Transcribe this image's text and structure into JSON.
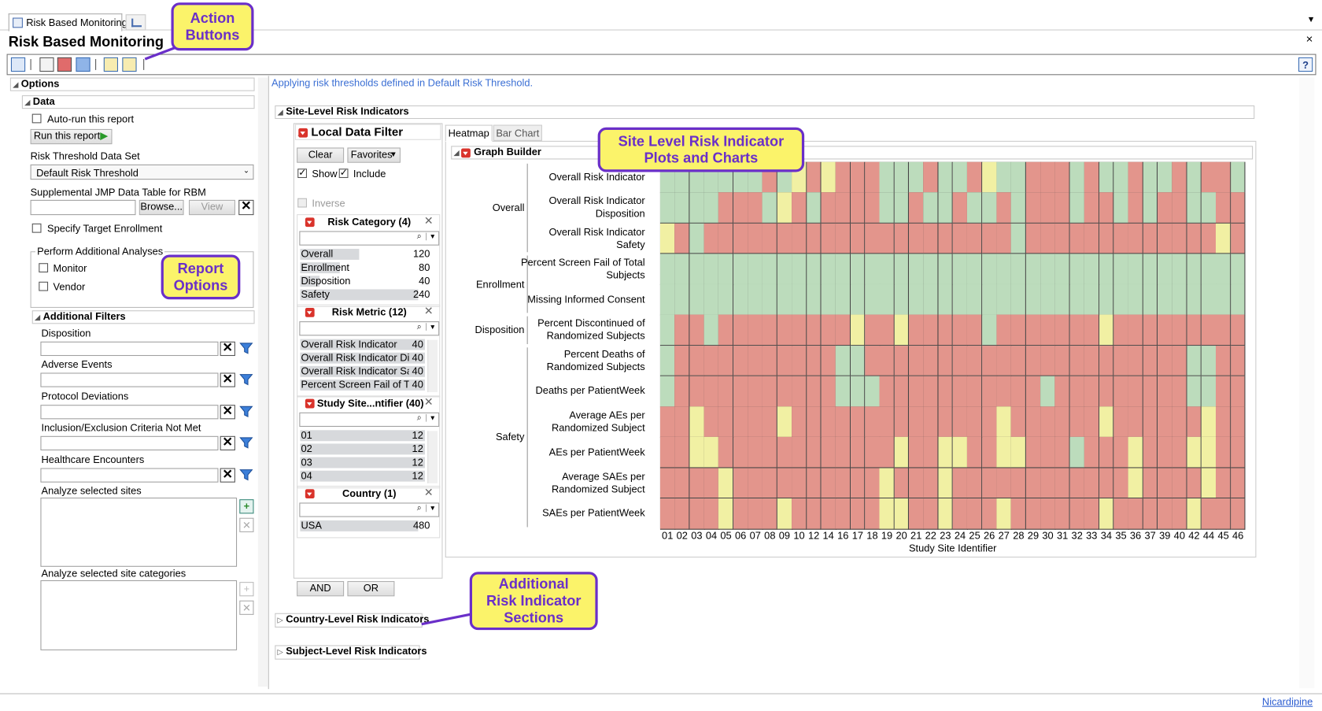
{
  "tabs": {
    "active": "Risk Based Monitoring"
  },
  "header": {
    "title": "Risk Based Monitoring"
  },
  "callouts": {
    "action_buttons": "Action Buttons",
    "report_options": "Report Options",
    "site_level": "Site Level Risk Indicator Plots and Charts",
    "additional": "Additional Risk Indicator Sections"
  },
  "options": {
    "title": "Options",
    "data_title": "Data",
    "auto_run": "Auto-run this report",
    "run_button": "Run this report",
    "threshold_label": "Risk Threshold Data Set",
    "threshold_value": "Default Risk Threshold",
    "supplemental_label": "Supplemental JMP Data Table for RBM",
    "browse": "Browse...",
    "view": "View",
    "target": "Specify Target Enrollment",
    "analyses_title": "Perform Additional Analyses",
    "analyses": [
      "Monitor",
      "Vendor"
    ],
    "filters_title": "Additional Filters",
    "filters": [
      "Disposition",
      "Adverse Events",
      "Protocol Deviations",
      "Inclusion/Exclusion Criteria Not Met",
      "Healthcare Encounters"
    ],
    "sites_label": "Analyze selected sites",
    "categories_label": "Analyze selected site categories"
  },
  "report": {
    "message": "Applying risk thresholds defined in Default Risk Threshold.",
    "site_section": "Site-Level Risk Indicators",
    "country_section": "Country-Level Risk Indicators",
    "subject_section": "Subject-Level Risk Indicators"
  },
  "local_filter": {
    "title": "Local Data Filter",
    "clear": "Clear",
    "favorites": "Favorites",
    "show": "Show",
    "include": "Include",
    "inverse": "Inverse",
    "groups": [
      {
        "title": "Risk Category (4)",
        "items": [
          {
            "label": "Overall",
            "count": 120
          },
          {
            "label": "Enrollment",
            "count": 80
          },
          {
            "label": "Disposition",
            "count": 40
          },
          {
            "label": "Safety",
            "count": 240
          }
        ]
      },
      {
        "title": "Risk Metric (12)",
        "items": [
          {
            "label": "Overall Risk Indicator",
            "count": 40
          },
          {
            "label": "Overall Risk Indicator Dis...",
            "count": 40
          },
          {
            "label": "Overall Risk Indicator Saf...",
            "count": 40
          },
          {
            "label": "Percent Screen Fail of To...",
            "count": 40
          }
        ]
      },
      {
        "title": "Study Site...ntifier (40)",
        "items": [
          {
            "label": "01",
            "count": 12
          },
          {
            "label": "02",
            "count": 12
          },
          {
            "label": "03",
            "count": 12
          },
          {
            "label": "04",
            "count": 12
          }
        ]
      },
      {
        "title": "Country (1)",
        "items": [
          {
            "label": "USA",
            "count": 480
          }
        ]
      }
    ],
    "and_button": "AND",
    "or_button": "OR"
  },
  "graph": {
    "tabs": [
      "Heatmap",
      "Bar Chart"
    ],
    "title": "Graph Builder",
    "x_title": "Study Site Identifier",
    "columns": [
      "01",
      "02",
      "03",
      "04",
      "05",
      "06",
      "07",
      "08",
      "09",
      "10",
      "12",
      "14",
      "16",
      "17",
      "18",
      "19",
      "20",
      "21",
      "22",
      "23",
      "24",
      "25",
      "26",
      "27",
      "28",
      "29",
      "30",
      "31",
      "32",
      "33",
      "34",
      "35",
      "36",
      "37",
      "39",
      "40",
      "42",
      "44",
      "45",
      "46"
    ],
    "level_colors": {
      "G": "#bcdcbc",
      "Y": "#f1f0a3",
      "R": "#e3958c"
    },
    "groups": [
      {
        "name": "Overall",
        "rows": [
          {
            "label": "Overall Risk Indicator",
            "levels": "GGGGGGGRGYRYRRRGGGRGGRYGGRRRGRGGRGGRGRRG"
          },
          {
            "label": "Overall Risk Indicator Disposition",
            "levels": "GGGGRRRGYRGRRRRGGRGGRGGRGRRRGRRGRGRRGGRR"
          },
          {
            "label": "Overall Risk Indicator Safety",
            "levels": "YRGRRRRRRRRRRRRRRRRRRRRRGRRRRRRRRRRRRRYR"
          }
        ]
      },
      {
        "name": "Enrollment",
        "rows": [
          {
            "label": "Percent Screen Fail of Total Subjects",
            "levels": "GGGGGGGGGGGGGGGGGGGGGGGGGGGGGGGGGGGGGGGG"
          },
          {
            "label": "Missing Informed Consent",
            "levels": "GGGGGGGGGGGGGGGGGGGGGGGGGGGGGGGGGGGGGGGG"
          }
        ]
      },
      {
        "name": "Disposition",
        "rows": [
          {
            "label": "Percent Discontinued of Randomized Subjects",
            "levels": "GRRGRRRRRRRRRYRRYRRRRRGRRRRRRRYRRRRRRRRR"
          }
        ]
      },
      {
        "name": "Safety",
        "rows": [
          {
            "label": "Percent Deaths of Randomized Subjects",
            "levels": "GRRRRRRRRRRRGGRRRRRRRRRRRRRRRRRRRRRRGGRR"
          },
          {
            "label": "Deaths per PatientWeek",
            "levels": "GRRRRRRRRRRRGGGRRRRRRRRRRRGRRRRRRRRRGGRR"
          },
          {
            "label": "Average AEs per Randomized Subject",
            "levels": "RRYRRRRRYRRRRRRRRRRRRRRYRRRRRRYRRRRRRYRR"
          },
          {
            "label": "AEs per PatientWeek",
            "levels": "RRYYRRRRRRRRRRRRYRRYYRRYYRRRGRRRYRRRYYRR"
          },
          {
            "label": "Average SAEs per Randomized Subject",
            "levels": "RRRRYRRRRRRRRRRYRRRYRRRRRRRRRRRRYRRRRYRR"
          },
          {
            "label": "SAEs per PatientWeek",
            "levels": "RRRRYRRRYRRRRRRYYRRYRRRYRRRRRRYRRRRRYRRR"
          }
        ]
      }
    ]
  },
  "footer": {
    "link": "Nicardipine"
  }
}
